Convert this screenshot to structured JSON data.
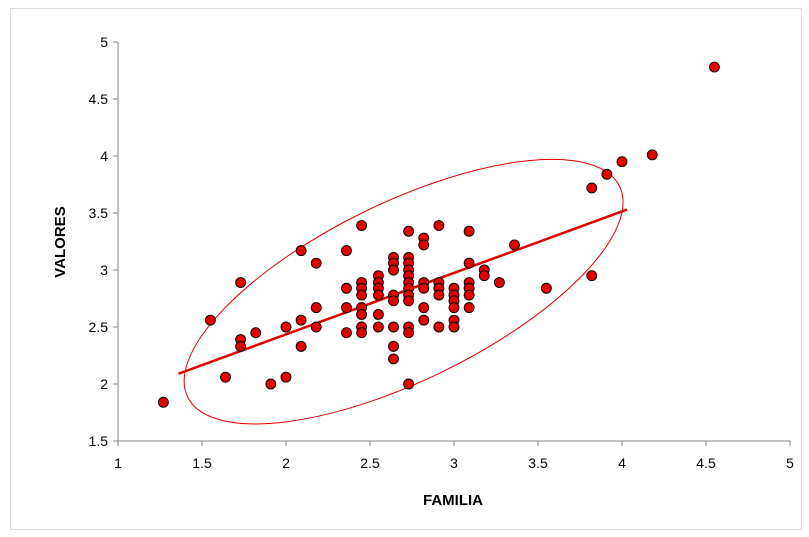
{
  "chart_data": {
    "type": "scatter",
    "title": "",
    "xlabel": "FAMILIA",
    "ylabel": "VALORES",
    "xlim": [
      1,
      5
    ],
    "ylim": [
      1.5,
      5
    ],
    "x_ticks": [
      "1",
      "1.5",
      "2",
      "2.5",
      "3",
      "3.5",
      "4",
      "4.5",
      "5"
    ],
    "y_ticks": [
      "1.5",
      "2",
      "2.5",
      "3",
      "3.5",
      "4",
      "4.5",
      "5"
    ],
    "grid": false,
    "legend": "none",
    "colors": {
      "points": "#e00000",
      "point_outline": "#000000",
      "trend": "#e00000",
      "ellipse": "#e00000"
    },
    "trendline": {
      "x": [
        1.36,
        4.03
      ],
      "y": [
        2.09,
        3.53
      ]
    },
    "ellipse": {
      "center": [
        2.7,
        2.81
      ],
      "semi_axis_x_units": 1.43,
      "semi_axis_y_units": 0.53,
      "rotation_deg": -26
    },
    "points": [
      [
        1.27,
        1.84
      ],
      [
        1.55,
        2.56
      ],
      [
        1.64,
        2.06
      ],
      [
        1.73,
        2.89
      ],
      [
        1.73,
        2.39
      ],
      [
        1.73,
        2.33
      ],
      [
        1.82,
        2.45
      ],
      [
        1.91,
        2.0
      ],
      [
        2.0,
        2.5
      ],
      [
        2.0,
        2.06
      ],
      [
        2.09,
        3.17
      ],
      [
        2.09,
        2.56
      ],
      [
        2.09,
        2.33
      ],
      [
        2.18,
        3.06
      ],
      [
        2.18,
        2.67
      ],
      [
        2.18,
        2.5
      ],
      [
        2.36,
        3.17
      ],
      [
        2.36,
        2.84
      ],
      [
        2.36,
        2.67
      ],
      [
        2.36,
        2.45
      ],
      [
        2.45,
        3.39
      ],
      [
        2.45,
        2.89
      ],
      [
        2.45,
        2.84
      ],
      [
        2.45,
        2.78
      ],
      [
        2.45,
        2.67
      ],
      [
        2.45,
        2.61
      ],
      [
        2.45,
        2.5
      ],
      [
        2.45,
        2.45
      ],
      [
        2.55,
        2.95
      ],
      [
        2.55,
        2.89
      ],
      [
        2.55,
        2.84
      ],
      [
        2.55,
        2.78
      ],
      [
        2.55,
        2.61
      ],
      [
        2.55,
        2.5
      ],
      [
        2.64,
        3.11
      ],
      [
        2.64,
        3.06
      ],
      [
        2.64,
        3.0
      ],
      [
        2.64,
        2.78
      ],
      [
        2.64,
        2.73
      ],
      [
        2.64,
        2.5
      ],
      [
        2.64,
        2.33
      ],
      [
        2.64,
        2.22
      ],
      [
        2.73,
        3.34
      ],
      [
        2.73,
        3.11
      ],
      [
        2.73,
        3.06
      ],
      [
        2.73,
        3.0
      ],
      [
        2.73,
        2.95
      ],
      [
        2.73,
        2.89
      ],
      [
        2.73,
        2.84
      ],
      [
        2.73,
        2.78
      ],
      [
        2.73,
        2.73
      ],
      [
        2.73,
        2.5
      ],
      [
        2.73,
        2.45
      ],
      [
        2.73,
        2.0
      ],
      [
        2.82,
        3.28
      ],
      [
        2.82,
        3.22
      ],
      [
        2.82,
        2.89
      ],
      [
        2.82,
        2.84
      ],
      [
        2.82,
        2.67
      ],
      [
        2.82,
        2.56
      ],
      [
        2.91,
        3.39
      ],
      [
        2.91,
        2.89
      ],
      [
        2.91,
        2.84
      ],
      [
        2.91,
        2.78
      ],
      [
        2.91,
        2.5
      ],
      [
        3.0,
        2.84
      ],
      [
        3.0,
        2.78
      ],
      [
        3.0,
        2.73
      ],
      [
        3.0,
        2.67
      ],
      [
        3.0,
        2.56
      ],
      [
        3.0,
        2.5
      ],
      [
        3.09,
        3.34
      ],
      [
        3.09,
        3.06
      ],
      [
        3.09,
        2.89
      ],
      [
        3.09,
        2.84
      ],
      [
        3.09,
        2.78
      ],
      [
        3.09,
        2.67
      ],
      [
        3.18,
        3.0
      ],
      [
        3.18,
        2.95
      ],
      [
        3.27,
        2.89
      ],
      [
        3.36,
        3.22
      ],
      [
        3.55,
        2.84
      ],
      [
        3.82,
        3.72
      ],
      [
        3.82,
        2.95
      ],
      [
        3.91,
        3.84
      ],
      [
        4.0,
        3.95
      ],
      [
        4.18,
        4.01
      ],
      [
        4.55,
        4.78
      ]
    ]
  }
}
